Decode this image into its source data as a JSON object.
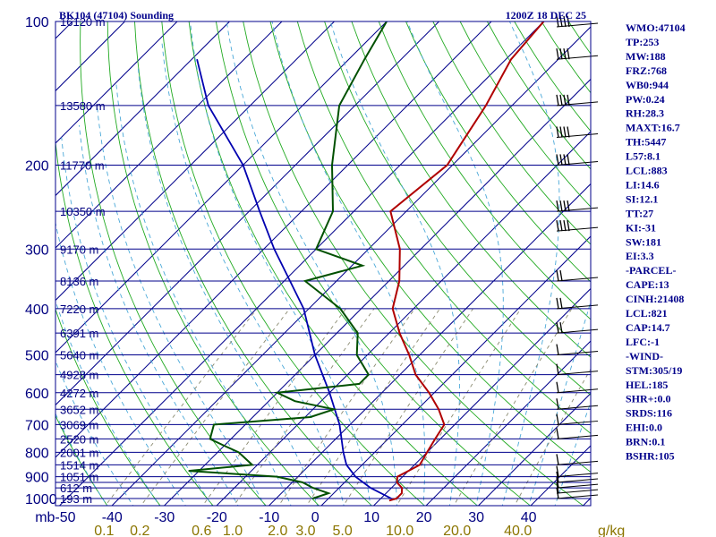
{
  "header": {
    "station": "BK104 (47104) Sounding",
    "time": "1200Z 18 DEC 25"
  },
  "indices": [
    "WMO:47104",
    "TP:253",
    "MW:188",
    "FRZ:768",
    "WB0:944",
    "PW:0.24",
    "RH:28.3",
    "MAXT:16.7",
    "TH:5447",
    "L57:8.1",
    "LCL:883",
    "LI:14.6",
    "SI:12.1",
    "TT:27",
    "KI:-31",
    "SW:181",
    "EI:3.3",
    "-PARCEL-",
    "CAPE:13",
    "CINH:21408",
    "LCL:821",
    "CAP:14.7",
    "LFC:-1",
    "-WIND-",
    "STM:305/19",
    "HEL:185",
    "SHR+:0.0",
    "SRDS:116",
    "EHI:0.0",
    "BRN:0.1",
    "BSHR:105"
  ],
  "colors": {
    "isobar": "#00008b",
    "isotherm": "#00008b",
    "dry_adiabat": "#22aa22",
    "moist_adiabat": "#4aa8d8",
    "mixing_ratio": "#8a8a70",
    "temperature": "#b00000",
    "dewpoint": "#005000",
    "parcel": "#0000b0",
    "label_blue": "#000080",
    "label_gold": "#8b7500"
  },
  "chart_data": {
    "type": "skew-t",
    "pressure_labels": [
      "100",
      "200",
      "300",
      "400",
      "500",
      "600",
      "700",
      "800",
      "900",
      "1000"
    ],
    "pressure_levels_hpa": [
      100,
      150,
      200,
      250,
      300,
      350,
      400,
      450,
      500,
      550,
      600,
      650,
      700,
      750,
      800,
      850,
      900,
      925,
      950,
      1000
    ],
    "height_labels": [
      {
        "p": 100,
        "text": "16120 m"
      },
      {
        "p": 150,
        "text": "13580 m"
      },
      {
        "p": 200,
        "text": "11770 m"
      },
      {
        "p": 250,
        "text": "10350 m"
      },
      {
        "p": 300,
        "text": "9170 m"
      },
      {
        "p": 350,
        "text": "8136 m"
      },
      {
        "p": 400,
        "text": "7220 m"
      },
      {
        "p": 450,
        "text": "6391 m"
      },
      {
        "p": 500,
        "text": "5640 m"
      },
      {
        "p": 550,
        "text": "4928 m"
      },
      {
        "p": 600,
        "text": "4272 m"
      },
      {
        "p": 650,
        "text": "3652 m"
      },
      {
        "p": 700,
        "text": "3069 m"
      },
      {
        "p": 750,
        "text": "2520 m"
      },
      {
        "p": 800,
        "text": "2001 m"
      },
      {
        "p": 850,
        "text": "1514 m"
      },
      {
        "p": 900,
        "text": "1051 m"
      },
      {
        "p": 950,
        "text": "612 m"
      },
      {
        "p": 1000,
        "text": "193 m"
      }
    ],
    "temp_axis_labels": [
      "mb-50",
      "-40",
      "-30",
      "-20",
      "-10",
      "0",
      "10",
      "20",
      "30",
      "40"
    ],
    "temp_axis_values": [
      -50,
      -40,
      -30,
      -20,
      -10,
      0,
      10,
      20,
      30,
      40
    ],
    "mixing_ratio_labels": [
      "0.1",
      "0.2",
      "0.6",
      "1.0",
      "2.0",
      "3.0",
      "5.0",
      "10.0",
      "20.0",
      "40.0",
      "g/kg"
    ],
    "mixing_ratio_values": [
      0.1,
      0.2,
      0.6,
      1.0,
      2.0,
      3.0,
      5.0,
      10.0,
      20.0,
      40.0
    ],
    "temperature_profile": [
      {
        "p": 1010,
        "t": 12
      },
      {
        "p": 1000,
        "t": 13
      },
      {
        "p": 975,
        "t": 13
      },
      {
        "p": 950,
        "t": 12
      },
      {
        "p": 925,
        "t": 10
      },
      {
        "p": 900,
        "t": 9
      },
      {
        "p": 875,
        "t": 10
      },
      {
        "p": 850,
        "t": 11
      },
      {
        "p": 800,
        "t": 10
      },
      {
        "p": 750,
        "t": 9
      },
      {
        "p": 700,
        "t": 8
      },
      {
        "p": 650,
        "t": 4
      },
      {
        "p": 600,
        "t": -1
      },
      {
        "p": 550,
        "t": -7
      },
      {
        "p": 500,
        "t": -12
      },
      {
        "p": 450,
        "t": -18
      },
      {
        "p": 400,
        "t": -24
      },
      {
        "p": 350,
        "t": -28
      },
      {
        "p": 300,
        "t": -34
      },
      {
        "p": 250,
        "t": -43
      },
      {
        "p": 200,
        "t": -41
      },
      {
        "p": 150,
        "t": -45
      },
      {
        "p": 120,
        "t": -49
      },
      {
        "p": 100,
        "t": -50
      }
    ],
    "dewpoint_profile": [
      {
        "p": 1000,
        "t": -3
      },
      {
        "p": 975,
        "t": -1
      },
      {
        "p": 950,
        "t": -5
      },
      {
        "p": 925,
        "t": -8
      },
      {
        "p": 900,
        "t": -14
      },
      {
        "p": 875,
        "t": -32
      },
      {
        "p": 850,
        "t": -21
      },
      {
        "p": 800,
        "t": -26
      },
      {
        "p": 775,
        "t": -30
      },
      {
        "p": 750,
        "t": -34
      },
      {
        "p": 700,
        "t": -36
      },
      {
        "p": 675,
        "t": -19
      },
      {
        "p": 650,
        "t": -16
      },
      {
        "p": 625,
        "t": -25
      },
      {
        "p": 600,
        "t": -30
      },
      {
        "p": 575,
        "t": -16
      },
      {
        "p": 550,
        "t": -16
      },
      {
        "p": 500,
        "t": -22
      },
      {
        "p": 450,
        "t": -26
      },
      {
        "p": 400,
        "t": -34
      },
      {
        "p": 350,
        "t": -46
      },
      {
        "p": 325,
        "t": -38
      },
      {
        "p": 300,
        "t": -50
      },
      {
        "p": 250,
        "t": -54
      },
      {
        "p": 200,
        "t": -63
      },
      {
        "p": 150,
        "t": -73
      },
      {
        "p": 120,
        "t": -77
      },
      {
        "p": 100,
        "t": -80
      }
    ],
    "parcel_profile": [
      {
        "p": 1000,
        "t": 12
      },
      {
        "p": 950,
        "t": 6
      },
      {
        "p": 900,
        "t": 1
      },
      {
        "p": 850,
        "t": -3
      },
      {
        "p": 800,
        "t": -6
      },
      {
        "p": 700,
        "t": -12
      },
      {
        "p": 600,
        "t": -20
      },
      {
        "p": 500,
        "t": -30
      },
      {
        "p": 400,
        "t": -41
      },
      {
        "p": 300,
        "t": -58
      },
      {
        "p": 250,
        "t": -68
      },
      {
        "p": 200,
        "t": -80
      },
      {
        "p": 150,
        "t": -98
      },
      {
        "p": 120,
        "t": -109
      }
    ],
    "wind_profile_hpa": [
      100,
      120,
      150,
      175,
      200,
      250,
      275,
      350,
      400,
      450,
      500,
      550,
      600,
      650,
      700,
      750,
      850,
      900,
      925,
      950,
      975,
      1000
    ],
    "xlim_surface_c": [
      -50,
      50
    ],
    "ylim_hpa": [
      1050,
      100
    ],
    "isotherm_skew": "45 degrees",
    "grid": true
  }
}
